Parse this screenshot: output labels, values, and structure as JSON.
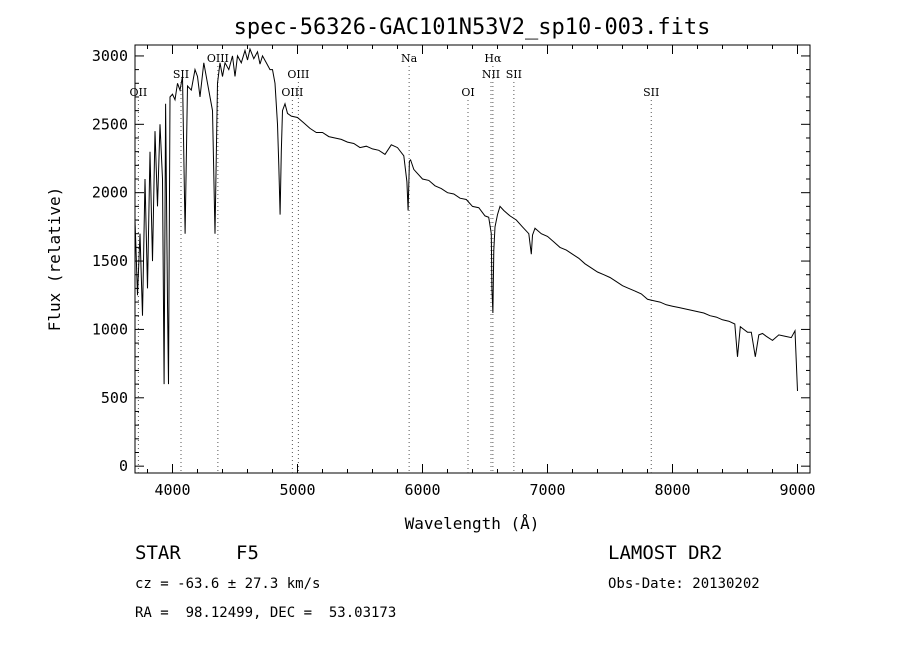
{
  "chart_data": {
    "type": "line",
    "title": "spec-56326-GAC101N53V2_sp10-003.fits",
    "xlabel": "Wavelength (Å)",
    "ylabel": "Flux (relative)",
    "xlim": [
      3700,
      9100
    ],
    "ylim": [
      -50,
      3080
    ],
    "x_ticks": [
      4000,
      5000,
      6000,
      7000,
      8000,
      9000
    ],
    "y_ticks": [
      0,
      500,
      1000,
      1500,
      2000,
      2500,
      3000
    ],
    "grid": false,
    "series": [
      {
        "x": [
          3700,
          3720,
          3740,
          3760,
          3780,
          3800,
          3820,
          3840,
          3860,
          3880,
          3900,
          3920,
          3933,
          3945,
          3960,
          3968,
          3980,
          4000,
          4020,
          4040,
          4060,
          4080,
          4101,
          4120,
          4150,
          4180,
          4200,
          4220,
          4250,
          4280,
          4300,
          4320,
          4340,
          4360,
          4380,
          4400,
          4420,
          4450,
          4480,
          4500,
          4520,
          4550,
          4580,
          4600,
          4620,
          4650,
          4680,
          4700,
          4720,
          4750,
          4780,
          4800,
          4820,
          4840,
          4850,
          4861,
          4870,
          4880,
          4900,
          4920,
          4950,
          5000,
          5050,
          5100,
          5150,
          5200,
          5250,
          5300,
          5350,
          5400,
          5450,
          5500,
          5550,
          5600,
          5650,
          5700,
          5750,
          5800,
          5850,
          5875,
          5885,
          5890,
          5895,
          5905,
          5930,
          5950,
          6000,
          6050,
          6100,
          6150,
          6200,
          6250,
          6300,
          6350,
          6400,
          6450,
          6500,
          6530,
          6550,
          6555,
          6563,
          6570,
          6580,
          6600,
          6620,
          6650,
          6700,
          6750,
          6800,
          6850,
          6870,
          6880,
          6900,
          6950,
          7000,
          7050,
          7100,
          7150,
          7200,
          7250,
          7300,
          7350,
          7400,
          7450,
          7500,
          7550,
          7600,
          7650,
          7700,
          7750,
          7800,
          7850,
          7900,
          7950,
          8000,
          8050,
          8100,
          8150,
          8200,
          8250,
          8300,
          8350,
          8400,
          8450,
          8498,
          8520,
          8542,
          8570,
          8600,
          8630,
          8662,
          8690,
          8720,
          8750,
          8800,
          8850,
          8900,
          8950,
          8980,
          9000
        ],
        "y": [
          1800,
          1250,
          1700,
          1100,
          2100,
          1300,
          2300,
          1500,
          2450,
          1900,
          2500,
          2100,
          600,
          2650,
          1200,
          600,
          2700,
          2720,
          2680,
          2800,
          2750,
          2850,
          1700,
          2780,
          2750,
          2900,
          2850,
          2700,
          2950,
          2800,
          2700,
          2600,
          1700,
          2800,
          2950,
          2850,
          2950,
          2900,
          3000,
          2850,
          3000,
          2950,
          3040,
          2970,
          3050,
          2980,
          3030,
          2940,
          3000,
          2950,
          2900,
          2900,
          2800,
          2500,
          2200,
          1840,
          2300,
          2600,
          2650,
          2580,
          2560,
          2550,
          2510,
          2470,
          2440,
          2440,
          2410,
          2400,
          2390,
          2370,
          2360,
          2330,
          2340,
          2320,
          2310,
          2280,
          2350,
          2330,
          2270,
          2080,
          1870,
          2060,
          2230,
          2240,
          2170,
          2150,
          2100,
          2090,
          2050,
          2030,
          2000,
          1990,
          1960,
          1950,
          1900,
          1890,
          1830,
          1820,
          1700,
          1300,
          1120,
          1580,
          1750,
          1840,
          1900,
          1870,
          1830,
          1800,
          1750,
          1700,
          1550,
          1690,
          1740,
          1700,
          1680,
          1640,
          1600,
          1580,
          1550,
          1520,
          1480,
          1450,
          1420,
          1400,
          1380,
          1350,
          1320,
          1300,
          1280,
          1260,
          1220,
          1210,
          1200,
          1180,
          1170,
          1160,
          1150,
          1140,
          1130,
          1120,
          1100,
          1090,
          1070,
          1060,
          1040,
          800,
          1020,
          1000,
          980,
          980,
          800,
          960,
          970,
          950,
          920,
          960,
          950,
          940,
          990,
          550
        ]
      }
    ],
    "lines": [
      {
        "label": "OII",
        "x": 3727,
        "row": 3
      },
      {
        "label": "SII",
        "x": 4068,
        "row": 2
      },
      {
        "label": "OIII",
        "x": 4363,
        "row": 1
      },
      {
        "label": "OIII",
        "x": 4959,
        "row": 3
      },
      {
        "label": "OIII",
        "x": 5007,
        "row": 2
      },
      {
        "label": "Na",
        "x": 5893,
        "row": 1
      },
      {
        "label": "OI",
        "x": 6364,
        "row": 3
      },
      {
        "label": "NII",
        "x": 6548,
        "row": 2
      },
      {
        "label": "Hα",
        "x": 6563,
        "row": 1
      },
      {
        "label": "SII",
        "x": 6731,
        "row": 2
      },
      {
        "label": "SII",
        "x": 7830,
        "row": 3
      }
    ]
  },
  "info": {
    "class": "STAR",
    "subclass": "F5",
    "survey": "LAMOST DR2",
    "cz": "cz = -63.6 ± 27.3 km/s",
    "obs_date": "Obs-Date: 20130202",
    "radec": "RA =  98.12499, DEC =  53.03173"
  }
}
